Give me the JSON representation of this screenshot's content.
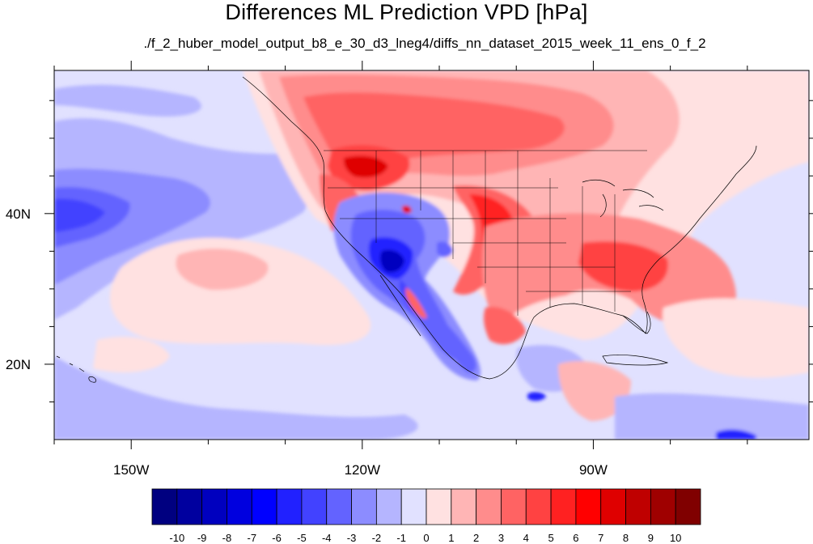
{
  "title": "Differences ML Prediction VPD [hPa]",
  "subtitle": "./f_2_huber_model_output_b8_e_30_d3_lneg4/diffs_nn_dataset_2015_week_11_ens_0_f_2",
  "map": {
    "lon_range": [
      -160,
      -62
    ],
    "lat_range": [
      10,
      59
    ],
    "lon_ticks": [
      {
        "value": -150,
        "label": "150W"
      },
      {
        "value": -120,
        "label": "120W"
      },
      {
        "value": -90,
        "label": "90W"
      }
    ],
    "lat_ticks": [
      {
        "value": 40,
        "label": "40N"
      },
      {
        "value": 20,
        "label": "20N"
      }
    ],
    "background_level": "-1 to 0"
  },
  "colorbar": {
    "labels": [
      "-10",
      "-9",
      "-8",
      "-7",
      "-6",
      "-5",
      "-4",
      "-3",
      "-2",
      "-1",
      "0",
      "1",
      "2",
      "3",
      "4",
      "5",
      "6",
      "7",
      "8",
      "9",
      "10"
    ],
    "colors": [
      "#000080",
      "#00009f",
      "#0000bf",
      "#0000df",
      "#0000ff",
      "#2121ff",
      "#4242ff",
      "#6363ff",
      "#8c8cff",
      "#b5b5ff",
      "#e1e1ff",
      "#ffe1e1",
      "#ffb5b5",
      "#ff8c8c",
      "#ff6363",
      "#ff4242",
      "#ff2121",
      "#ff0000",
      "#df0000",
      "#bf0000",
      "#9f0000",
      "#800000"
    ]
  }
}
